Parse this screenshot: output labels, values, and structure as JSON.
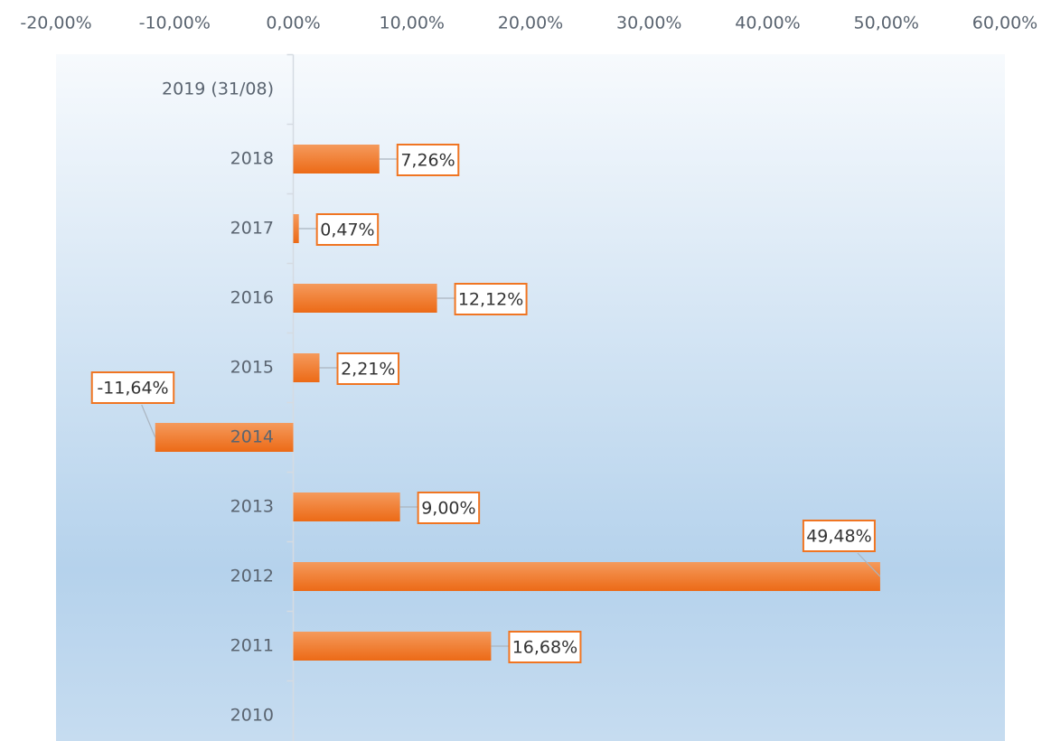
{
  "chart_data": {
    "type": "barh",
    "categories": [
      "2019 (31/08)",
      "2018",
      "2017",
      "2016",
      "2015",
      "2014",
      "2013",
      "2012",
      "2011",
      "2010"
    ],
    "values": [
      null,
      7.26,
      0.47,
      12.12,
      2.21,
      -11.64,
      9.0,
      49.48,
      16.68,
      null
    ],
    "value_labels": [
      null,
      "7,26%",
      "0,47%",
      "12,12%",
      "2,21%",
      "-11,64%",
      "9,00%",
      "49,48%",
      "16,68%",
      null
    ],
    "color": "#f07522",
    "xlim": [
      -20,
      60
    ],
    "xticks": [
      {
        "value": -20,
        "label": "-20,00%"
      },
      {
        "value": -10,
        "label": "-10,00%"
      },
      {
        "value": 0,
        "label": "0,00%"
      },
      {
        "value": 10,
        "label": "10,00%"
      },
      {
        "value": 20,
        "label": "20,00%"
      },
      {
        "value": 30,
        "label": "30,00%"
      },
      {
        "value": 40,
        "label": "40,00%"
      },
      {
        "value": 50,
        "label": "50,00%"
      },
      {
        "value": 60,
        "label": "60,00%"
      }
    ]
  }
}
